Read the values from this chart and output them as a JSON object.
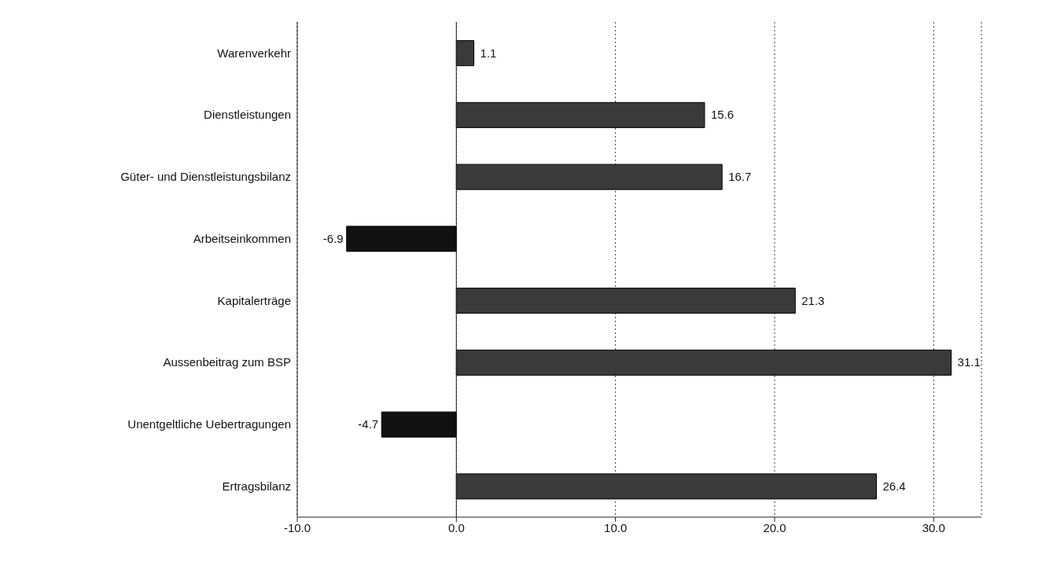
{
  "chart_data": {
    "type": "bar",
    "orientation": "horizontal",
    "categories": [
      "Warenverkehr",
      "Dienstleistungen",
      "Güter- und Dienstleistungsbilanz",
      "Arbeitseinkommen",
      "Kapitalerträge",
      "Aussenbeitrag zum BSP",
      "Unentgeltliche Uebertragungen",
      "Ertragsbilanz"
    ],
    "values": [
      1.1,
      15.6,
      16.7,
      -6.9,
      21.3,
      31.1,
      -4.7,
      26.4
    ],
    "colors": [
      "#3a3a3a",
      "#3a3a3a",
      "#3a3a3a",
      "#111111",
      "#3a3a3a",
      "#3a3a3a",
      "#111111",
      "#3a3a3a"
    ],
    "data_labels": true,
    "xlim": [
      -10,
      33
    ],
    "xticks": [
      {
        "value": -10,
        "label": "-10.0"
      },
      {
        "value": 0,
        "label": "0.0"
      },
      {
        "value": 10,
        "label": "10.0"
      },
      {
        "value": 20,
        "label": "20.0"
      },
      {
        "value": 30,
        "label": "30.0"
      }
    ],
    "grid": "x"
  }
}
